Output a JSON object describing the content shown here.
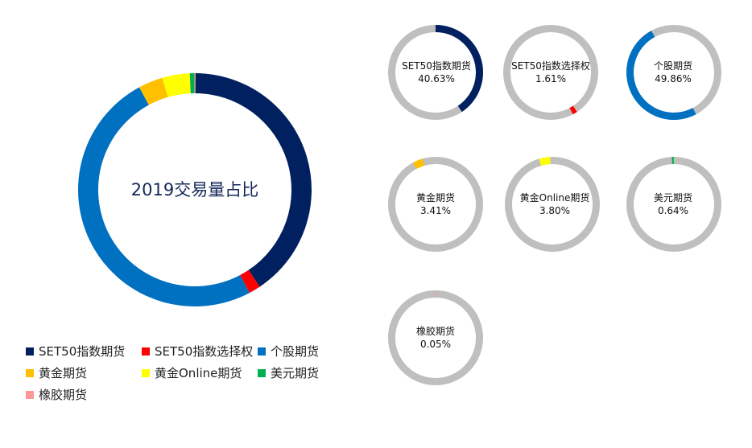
{
  "chart_data": [
    {
      "type": "pie",
      "variant": "donut",
      "title": "2019交易量占比",
      "slices": [
        {
          "label": "SET50指数期货",
          "value": 40.63,
          "color": "#002060"
        },
        {
          "label": "SET50指数选择权",
          "value": 1.61,
          "color": "#ff0000"
        },
        {
          "label": "个股期货",
          "value": 49.86,
          "color": "#0070c0"
        },
        {
          "label": "黄金期货",
          "value": 3.41,
          "color": "#ffc000"
        },
        {
          "label": "黄金Online期货",
          "value": 3.8,
          "color": "#ffff00"
        },
        {
          "label": "美元期货",
          "value": 0.64,
          "color": "#00b050"
        },
        {
          "label": "橡胶期货",
          "value": 0.05,
          "color": "#ff9999"
        }
      ],
      "legend_position": "bottom"
    }
  ],
  "small_donuts": [
    {
      "label": "SET50指数期货",
      "value_text": "40.63%",
      "value": 40.63,
      "start": 0,
      "color": "#002060"
    },
    {
      "label": "SET50指数选择权",
      "value_text": "1.61%",
      "value": 1.61,
      "start": 40.63,
      "color": "#ff0000"
    },
    {
      "label": "个股期货",
      "value_text": "49.86%",
      "value": 49.86,
      "start": 42.24,
      "color": "#0070c0"
    },
    {
      "label": "黄金期货",
      "value_text": "3.41%",
      "value": 3.41,
      "start": 92.1,
      "color": "#ffc000"
    },
    {
      "label": "黄金Online期货",
      "value_text": "3.80%",
      "value": 3.8,
      "start": 95.51,
      "color": "#ffff00"
    },
    {
      "label": "美元期货",
      "value_text": "0.64%",
      "value": 0.64,
      "start": 99.31,
      "color": "#00b050"
    },
    {
      "label": "橡胶期货",
      "value_text": "0.05%",
      "value": 0.05,
      "start": 99.95,
      "color": "#ff9999"
    }
  ],
  "donut_track_color": "#bfbfbf"
}
